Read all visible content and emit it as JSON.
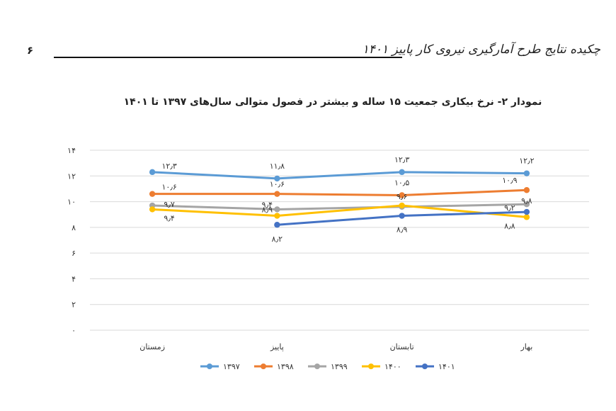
{
  "page": {
    "number": "۶",
    "header_title": "چکیده نتایج طرح آمارگیری نیروی کار پاییز ۱۴۰۱"
  },
  "chart_data": {
    "type": "line",
    "title": "نمودار ۲-  نرخ بیکاری جمعیت ۱۵ ساله و بیشتر در فصول متوالی سال‌های ۱۳۹۷ تا ۱۴۰۱",
    "categories": [
      "بهار",
      "تابستان",
      "پاییز",
      "زمستان"
    ],
    "y_ticks": [
      "۰",
      "۲",
      "۴",
      "۶",
      "۸",
      "۱۰",
      "۱۲",
      "۱۴"
    ],
    "ylim": [
      0,
      14
    ],
    "grid": true,
    "legend_position": "bottom",
    "series": [
      {
        "name": "۱۳۹۷",
        "color": "#5b9bd5",
        "values": [
          12.2,
          12.3,
          11.8,
          12.3
        ],
        "labels": [
          "۱۲٫۲",
          "۱۲٫۳",
          "۱۱٫۸",
          "۱۲٫۳"
        ]
      },
      {
        "name": "۱۳۹۸",
        "color": "#ed7d31",
        "values": [
          10.9,
          10.5,
          10.6,
          10.6
        ],
        "labels": [
          "۱۰٫۹",
          "۱۰٫۵",
          "۱۰٫۶",
          "۱۰٫۶"
        ]
      },
      {
        "name": "۱۳۹۹",
        "color": "#a5a5a5",
        "values": [
          9.8,
          9.6,
          9.4,
          9.7
        ],
        "labels": [
          "۹٫۸",
          "۹٫۶",
          "۹٫۴",
          "۹٫۷"
        ]
      },
      {
        "name": "۱۴۰۰",
        "color": "#ffc000",
        "values": [
          8.8,
          9.7,
          8.9,
          9.4
        ],
        "labels": [
          "۸٫۸",
          "",
          "۸٫۹",
          "۹٫۴"
        ]
      },
      {
        "name": "۱۴۰۱",
        "color": "#4472c4",
        "values": [
          9.2,
          8.9,
          8.2,
          null
        ],
        "labels": [
          "۹٫۲",
          "۸٫۹",
          "۸٫۲",
          ""
        ]
      }
    ]
  }
}
